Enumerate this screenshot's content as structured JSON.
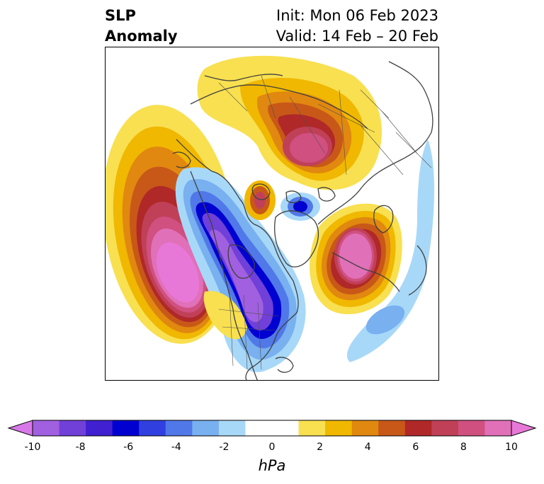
{
  "title": {
    "variable_line1": "SLP",
    "variable_line2": "Anomaly",
    "init_line": "Init: Mon 06 Feb 2023",
    "valid_line": "Valid: 14 Feb – 20 Feb"
  },
  "colorbar": {
    "unit": "hPa",
    "tick_labels": [
      "-10",
      "-8",
      "-6",
      "-4",
      "-2",
      "0",
      "2",
      "4",
      "6",
      "8",
      "10"
    ],
    "under_color": "#d878e8",
    "over_color": "#e878d8",
    "bins": [
      "#a060e0",
      "#7040d8",
      "#4020d0",
      "#0000d0",
      "#3040e0",
      "#5078e8",
      "#78b0f0",
      "#a8d8f8",
      "#ffffff",
      "#ffffff",
      "#f8e050",
      "#f0b800",
      "#e08810",
      "#c85818",
      "#b02828",
      "#c04058",
      "#d05080",
      "#e070b8"
    ]
  },
  "map": {
    "projection": "north-polar-stereographic",
    "coastline_color": "#404040",
    "border_color": "#505050"
  }
}
